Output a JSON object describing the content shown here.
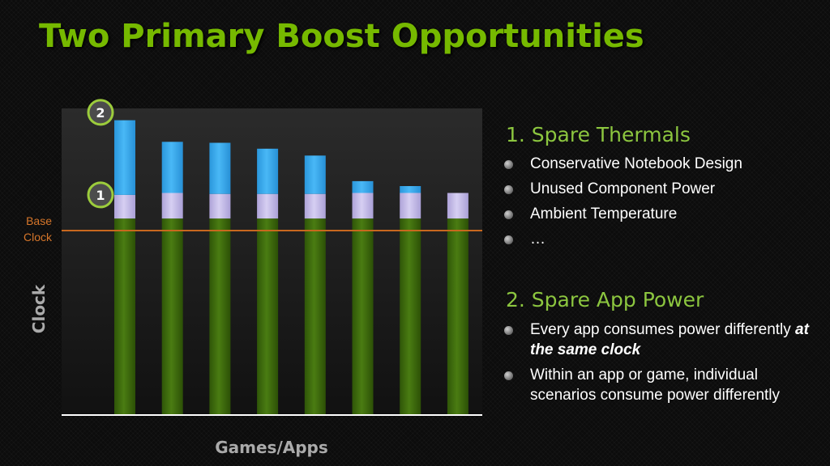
{
  "title": "Two Primary Boost Opportunities",
  "colors": {
    "title": "#76b900",
    "base_segment": "#3e6b0c",
    "thermal_segment": "#c8bfea",
    "power_segment": "#38aef0",
    "base_clock_line": "#c8681e",
    "marker_ring": "#9ccc3c"
  },
  "chart_data": {
    "type": "bar",
    "stacked": true,
    "xlabel": "Games/Apps",
    "ylabel": "Clock",
    "ylim": [
      0,
      15.6
    ],
    "grid": false,
    "legend": "none",
    "reference_line": {
      "label_line1": "Base",
      "label_line2": "Clock",
      "value": 10
    },
    "series": [
      {
        "values": [
          10,
          10,
          10,
          10,
          10,
          10,
          10,
          10
        ]
      },
      {
        "values": [
          1.2,
          1.3,
          1.25,
          1.25,
          1.25,
          1.3,
          1.3,
          1.3
        ]
      },
      {
        "values": [
          3.8,
          2.6,
          2.6,
          2.3,
          1.95,
          0.6,
          0.35,
          0
        ]
      }
    ],
    "markers": [
      {
        "label": "2",
        "bar": 0,
        "level": 15.4
      },
      {
        "label": "1",
        "bar": 0,
        "level": 11.2
      }
    ]
  },
  "sections": [
    {
      "heading": "1. Spare Thermals",
      "bullets": [
        {
          "text": "Conservative Notebook Design"
        },
        {
          "text": "Unused Component Power"
        },
        {
          "text": "Ambient Temperature"
        },
        {
          "text": "…"
        }
      ]
    },
    {
      "heading": "2. Spare App Power",
      "bullets": [
        {
          "text": "Every app consumes power differently ",
          "emphasis": "at the same clock"
        },
        {
          "text": "Within an app or game, individual scenarios consume power differently"
        }
      ]
    }
  ]
}
